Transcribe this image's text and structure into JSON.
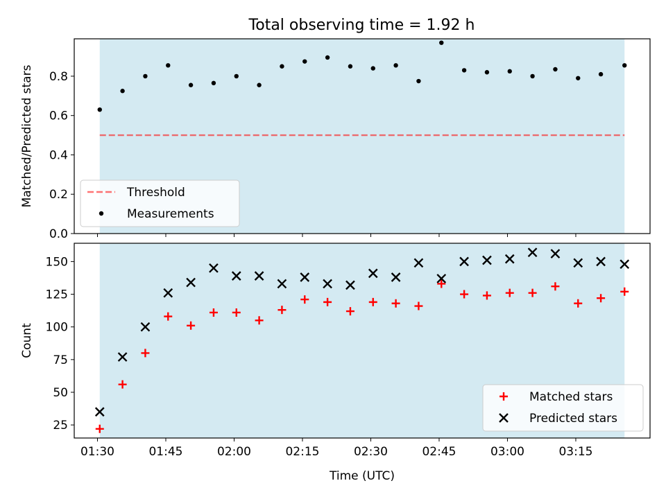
{
  "figure": {
    "title": "Total observing time = 1.92 h",
    "background": "#ffffff"
  },
  "colors": {
    "shade": "#add8e6",
    "threshold": "#ff0000",
    "measurements": "#000000",
    "matched": "#ff0000",
    "predicted": "#000000"
  },
  "chart_data": [
    {
      "type": "scatter",
      "title": "Total observing time = 1.92 h",
      "xlabel": "",
      "ylabel": "Matched/Predicted stars",
      "x_unit": "minutes since 00:00 UTC",
      "xlim": [
        84.9,
        211.3
      ],
      "ylim": [
        0.0,
        0.99
      ],
      "yticks": [
        0.0,
        0.2,
        0.4,
        0.6,
        0.8
      ],
      "ytick_labels": [
        "0.0",
        "0.2",
        "0.4",
        "0.6",
        "0.8"
      ],
      "xticks": [
        90,
        105,
        120,
        135,
        150,
        165,
        180,
        195
      ],
      "xtick_labels": [],
      "shaded_span": [
        90.5,
        205.7
      ],
      "grid": false,
      "legend": {
        "placement": "lower-left",
        "entries": [
          "Threshold",
          "Measurements"
        ]
      },
      "series": [
        {
          "name": "Threshold",
          "kind": "hline",
          "y": 0.5,
          "x_range": [
            90.5,
            205.7
          ]
        },
        {
          "name": "Measurements",
          "kind": "points",
          "x": [
            90.5,
            95.5,
            100.5,
            105.5,
            110.5,
            115.5,
            120.5,
            125.5,
            130.5,
            135.5,
            140.5,
            145.5,
            150.5,
            155.5,
            160.5,
            165.5,
            170.5,
            175.5,
            180.5,
            185.5,
            190.5,
            195.5,
            200.5,
            205.7
          ],
          "y": [
            0.63,
            0.725,
            0.8,
            0.855,
            0.755,
            0.765,
            0.8,
            0.755,
            0.85,
            0.875,
            0.895,
            0.85,
            0.84,
            0.855,
            0.775,
            0.97,
            0.83,
            0.82,
            0.825,
            0.8,
            0.835,
            0.79,
            0.81,
            0.855
          ]
        }
      ]
    },
    {
      "type": "scatter",
      "title": "",
      "xlabel": "Time (UTC)",
      "ylabel": "Count",
      "x_unit": "minutes since 00:00 UTC",
      "xlim": [
        84.9,
        211.3
      ],
      "ylim": [
        15,
        164
      ],
      "yticks": [
        25,
        50,
        75,
        100,
        125,
        150
      ],
      "ytick_labels": [
        "25",
        "50",
        "75",
        "100",
        "125",
        "150"
      ],
      "xticks": [
        90,
        105,
        120,
        135,
        150,
        165,
        180,
        195
      ],
      "xtick_labels": [
        "01:30",
        "01:45",
        "02:00",
        "02:15",
        "02:30",
        "02:45",
        "03:00",
        "03:15"
      ],
      "shaded_span": [
        90.5,
        205.7
      ],
      "grid": false,
      "legend": {
        "placement": "lower-right",
        "entries": [
          "Matched stars",
          "Predicted stars"
        ]
      },
      "series": [
        {
          "name": "Matched stars",
          "marker": "+",
          "x": [
            90.5,
            95.5,
            100.5,
            105.5,
            110.5,
            115.5,
            120.5,
            125.5,
            130.5,
            135.5,
            140.5,
            145.5,
            150.5,
            155.5,
            160.5,
            165.5,
            170.5,
            175.5,
            180.5,
            185.5,
            190.5,
            195.5,
            200.5,
            205.7
          ],
          "y": [
            22,
            56,
            80,
            108,
            101,
            111,
            111,
            105,
            113,
            121,
            119,
            112,
            119,
            118,
            116,
            133,
            125,
            124,
            126,
            126,
            131,
            118,
            122,
            127
          ]
        },
        {
          "name": "Predicted stars",
          "marker": "x",
          "x": [
            90.5,
            95.5,
            100.5,
            105.5,
            110.5,
            115.5,
            120.5,
            125.5,
            130.5,
            135.5,
            140.5,
            145.5,
            150.5,
            155.5,
            160.5,
            165.5,
            170.5,
            175.5,
            180.5,
            185.5,
            190.5,
            195.5,
            200.5,
            205.7
          ],
          "y": [
            35,
            77,
            100,
            126,
            134,
            145,
            139,
            139,
            133,
            138,
            133,
            132,
            141,
            138,
            149,
            137,
            150,
            151,
            152,
            157,
            156,
            149,
            150,
            148
          ]
        }
      ]
    }
  ]
}
